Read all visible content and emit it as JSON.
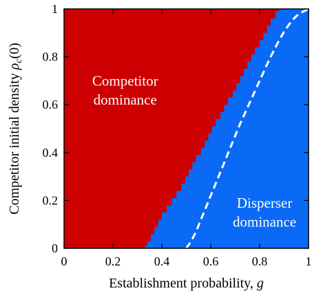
{
  "chart_data": {
    "type": "heatmap",
    "title": "",
    "xlabel": "Establishment probability,",
    "xlabel_var": "g",
    "ylabel": "Competitor  initial density",
    "ylabel_var": "ρ",
    "ylabel_sub": "c",
    "ylabel_arg": "(0)",
    "xlim": [
      0,
      1
    ],
    "ylim": [
      0,
      1
    ],
    "xticks": [
      "0",
      "0.2",
      "0.4",
      "0.6",
      "0.8",
      "1"
    ],
    "yticks": [
      "0",
      "0.2",
      "0.4",
      "0.6",
      "0.8",
      "1"
    ],
    "grid": false,
    "regions": [
      {
        "name": "Competitor dominance",
        "lines": [
          "Competitor",
          "dominance"
        ],
        "color": "#cc0000"
      },
      {
        "name": "Disperser dominance",
        "lines": [
          "Disperser",
          "dominance"
        ],
        "color": "#0a6af5"
      }
    ],
    "boundary_step": {
      "description": "stepped boundary between regions (x value of boundary at given y)",
      "points": [
        [
          0.33,
          0.0
        ],
        [
          0.34,
          0.01
        ],
        [
          0.355,
          0.03
        ],
        [
          0.37,
          0.06
        ],
        [
          0.385,
          0.09
        ],
        [
          0.4,
          0.12
        ],
        [
          0.42,
          0.15
        ],
        [
          0.44,
          0.18
        ],
        [
          0.46,
          0.21
        ],
        [
          0.48,
          0.24
        ],
        [
          0.495,
          0.27
        ],
        [
          0.51,
          0.3
        ],
        [
          0.525,
          0.33
        ],
        [
          0.54,
          0.36
        ],
        [
          0.56,
          0.39
        ],
        [
          0.575,
          0.42
        ],
        [
          0.59,
          0.45
        ],
        [
          0.605,
          0.48
        ],
        [
          0.62,
          0.51
        ],
        [
          0.64,
          0.54
        ],
        [
          0.655,
          0.57
        ],
        [
          0.67,
          0.6
        ],
        [
          0.69,
          0.63
        ],
        [
          0.705,
          0.66
        ],
        [
          0.72,
          0.69
        ],
        [
          0.735,
          0.72
        ],
        [
          0.75,
          0.75
        ],
        [
          0.765,
          0.78
        ],
        [
          0.78,
          0.81
        ],
        [
          0.8,
          0.84
        ],
        [
          0.815,
          0.87
        ],
        [
          0.83,
          0.9
        ],
        [
          0.845,
          0.93
        ],
        [
          0.865,
          0.96
        ],
        [
          0.88,
          0.99
        ],
        [
          0.885,
          1.0
        ]
      ]
    },
    "dashed_curve": {
      "color": "#ffffff",
      "points": [
        [
          0.5,
          0.0
        ],
        [
          0.52,
          0.03
        ],
        [
          0.54,
          0.07
        ],
        [
          0.56,
          0.12
        ],
        [
          0.58,
          0.17
        ],
        [
          0.6,
          0.22
        ],
        [
          0.62,
          0.27
        ],
        [
          0.64,
          0.32
        ],
        [
          0.66,
          0.37
        ],
        [
          0.68,
          0.42
        ],
        [
          0.7,
          0.47
        ],
        [
          0.72,
          0.52
        ],
        [
          0.74,
          0.565
        ],
        [
          0.76,
          0.61
        ],
        [
          0.78,
          0.655
        ],
        [
          0.8,
          0.7
        ],
        [
          0.82,
          0.745
        ],
        [
          0.84,
          0.79
        ],
        [
          0.86,
          0.83
        ],
        [
          0.88,
          0.87
        ],
        [
          0.9,
          0.905
        ],
        [
          0.92,
          0.935
        ],
        [
          0.94,
          0.96
        ],
        [
          0.96,
          0.98
        ],
        [
          0.98,
          0.99
        ],
        [
          1.0,
          1.0
        ]
      ]
    }
  }
}
